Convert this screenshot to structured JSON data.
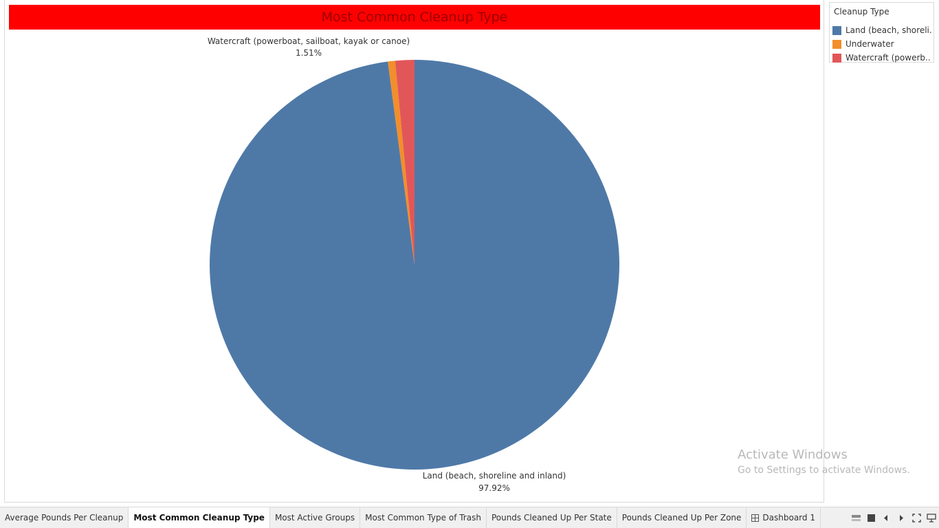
{
  "chart_data": {
    "type": "pie",
    "title": "Most Common Cleanup Type",
    "legend_title": "Cleanup Type",
    "legend_placement": "right",
    "categories": [
      "Land (beach, shoreline and inland)",
      "Underwater",
      "Watercraft (powerboat, sailboat, kayak or canoe)"
    ],
    "values": [
      97.92,
      0.57,
      1.51
    ],
    "value_labels": [
      "97.92%",
      "",
      "1.51%"
    ],
    "colors": [
      "#4e79a7",
      "#f28e2b",
      "#e15759"
    ]
  },
  "legend": {
    "title": "Cleanup Type",
    "items": [
      {
        "label": "Land (beach, shoreli..",
        "color": "#4e79a7"
      },
      {
        "label": "Underwater",
        "color": "#f28e2b"
      },
      {
        "label": "Watercraft (powerb..",
        "color": "#e15759"
      }
    ]
  },
  "title_bar": {
    "background": "#ff0000",
    "text_color": "#9a0000"
  },
  "watermark": {
    "line1": "Activate Windows",
    "line2": "Go to Settings to activate Windows."
  },
  "tabs": [
    {
      "label": "Average Pounds Per Cleanup",
      "active": false
    },
    {
      "label": "Most Common Cleanup Type",
      "active": true
    },
    {
      "label": "Most Active Groups",
      "active": false
    },
    {
      "label": "Most Common Type of Trash",
      "active": false
    },
    {
      "label": "Pounds Cleaned Up Per State",
      "active": false
    },
    {
      "label": "Pounds Cleaned Up Per Zone",
      "active": false
    },
    {
      "label": "Dashboard 1",
      "active": false,
      "icon": "dashboard-icon"
    }
  ],
  "tab_controls": [
    "show-filmstrip-icon",
    "show-tabs-icon",
    "previous-sheet-icon",
    "next-sheet-icon",
    "fit-window-icon",
    "presentation-mode-icon"
  ]
}
